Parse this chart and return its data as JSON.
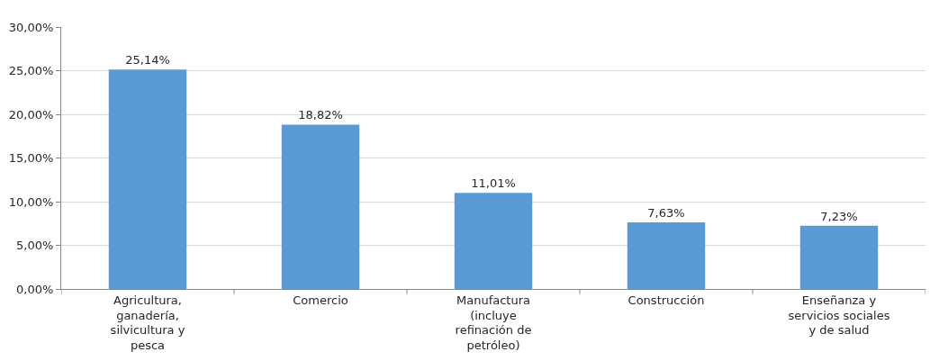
{
  "chart_data": {
    "type": "bar",
    "categories": [
      "Agricultura, ganadería, silvicultura y pesca",
      "Comercio",
      "Manufactura (incluye refinación de petróleo)",
      "Construcción",
      "Enseñanza y servicios sociales y de salud"
    ],
    "values": [
      25.14,
      18.82,
      11.01,
      7.63,
      7.23
    ],
    "value_labels": [
      "25,14%",
      "18,82%",
      "11,01%",
      "7,63%",
      "7,23%"
    ],
    "color": "#5b9bd5",
    "ylim": [
      0,
      30
    ],
    "yticks": [
      {
        "value": 0,
        "label": "0,00%"
      },
      {
        "value": 5,
        "label": "5,00%"
      },
      {
        "value": 10,
        "label": "10,00%"
      },
      {
        "value": 15,
        "label": "15,00%"
      },
      {
        "value": 20,
        "label": "20,00%"
      },
      {
        "value": 25,
        "label": "25,00%"
      },
      {
        "value": 30,
        "label": "30,00%"
      }
    ],
    "grid": "y",
    "legend": false
  }
}
